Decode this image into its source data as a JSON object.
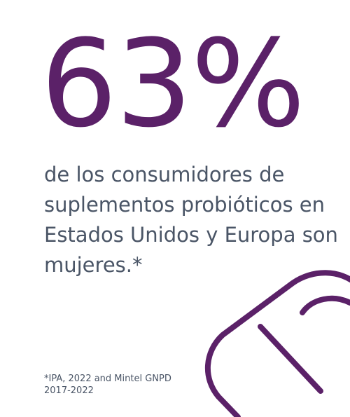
{
  "headline": {
    "stat": "63%"
  },
  "description": {
    "text": "de los consumidores de suplementos probióticos en Estados Unidos y Europa son mujeres.*"
  },
  "footnote": {
    "line1": "*IPA, 2022 and Mintel GNPD",
    "line2": "2017-2022"
  },
  "graphic": {
    "icon": "capsule-icon"
  },
  "colors": {
    "accent": "#5b2168",
    "text": "#4a5566",
    "background": "#ffffff"
  }
}
